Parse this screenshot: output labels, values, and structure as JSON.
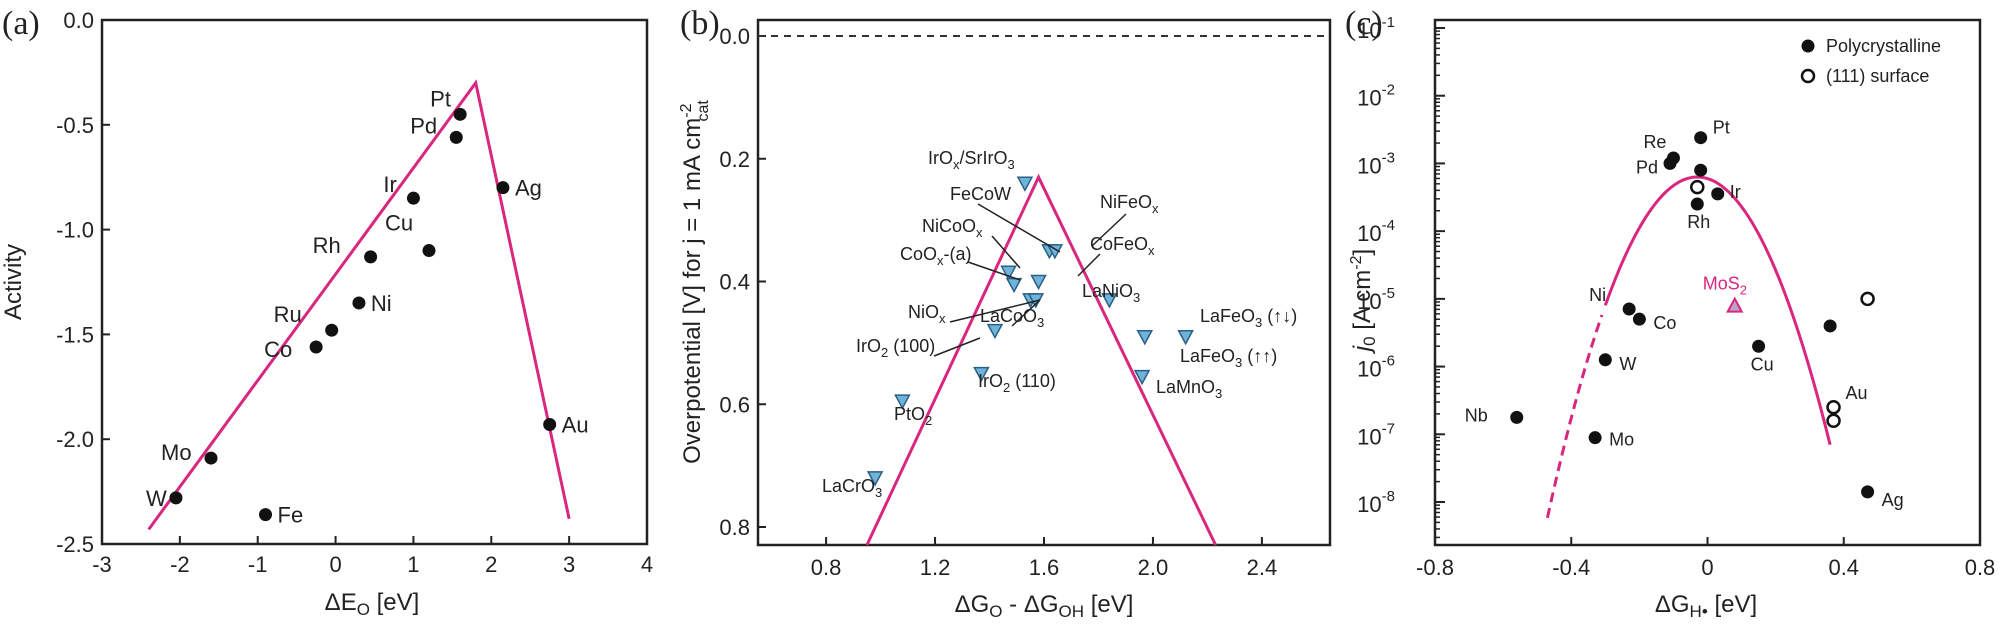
{
  "colors": {
    "trend": "#d9267e",
    "marker": "#111111",
    "triangle": "#6fb3d9",
    "triangle_edge": "#2a5f86",
    "mos2": "#d9267e"
  },
  "chart_data": [
    {
      "type": "scatter",
      "panel": "(a)",
      "xlabel": "ΔE",
      "xlabel_sub": "O",
      "xlabel_unit": " [eV]",
      "ylabel": "Activity",
      "xlim": [
        -3,
        4
      ],
      "ylim": [
        -2.5,
        0.0
      ],
      "xticks": [
        "-3",
        "-2",
        "-1",
        "0",
        "1",
        "2",
        "3",
        "4"
      ],
      "yticks": [
        "-2.5",
        "-2.0",
        "-1.5",
        "-1.0",
        "-0.5",
        "0.0"
      ],
      "points": [
        {
          "label": "Pt",
          "x": 1.6,
          "y": -0.45
        },
        {
          "label": "Pd",
          "x": 1.55,
          "y": -0.56
        },
        {
          "label": "Ir",
          "x": 1.0,
          "y": -0.85
        },
        {
          "label": "Ag",
          "x": 2.15,
          "y": -0.8
        },
        {
          "label": "Cu",
          "x": 1.2,
          "y": -1.1
        },
        {
          "label": "Rh",
          "x": 0.45,
          "y": -1.13
        },
        {
          "label": "Ni",
          "x": 0.3,
          "y": -1.35
        },
        {
          "label": "Ru",
          "x": -0.05,
          "y": -1.48
        },
        {
          "label": "Co",
          "x": -0.25,
          "y": -1.56
        },
        {
          "label": "Au",
          "x": 2.75,
          "y": -1.93
        },
        {
          "label": "Mo",
          "x": -1.6,
          "y": -2.09
        },
        {
          "label": "W",
          "x": -2.05,
          "y": -2.28
        },
        {
          "label": "Fe",
          "x": -0.9,
          "y": -2.36
        }
      ],
      "trend_line": [
        [
          -2.4,
          -2.43
        ],
        [
          1.8,
          -0.3
        ],
        [
          3.0,
          -2.38
        ]
      ]
    },
    {
      "type": "scatter",
      "panel": "(b)",
      "xlabel": "ΔG",
      "xlabel_sub1": "O",
      "xlabel_mid": " - ΔG",
      "xlabel_sub2": "OH",
      "xlabel_unit": " [eV]",
      "ylabel": "Overpotential [V] for j = 1 mA cm",
      "ylabel_sup": "-2",
      "ylabel_sub": "cat",
      "xlim": [
        0.55,
        2.65
      ],
      "ylim": [
        0.0,
        0.86
      ],
      "yinverted": true,
      "xticks": [
        "0.8",
        "1.2",
        "1.6",
        "2.0",
        "2.4"
      ],
      "yticks": [
        "0.0",
        "0.2",
        "0.4",
        "0.6",
        "0.8"
      ],
      "reference_line": 0.0,
      "points": [
        {
          "label": "IrOx/SrIrO3",
          "x": 1.53,
          "y": 0.24
        },
        {
          "label": "FeCoW",
          "x": 1.62,
          "y": 0.35
        },
        {
          "label": "NiFeOx",
          "x": 1.64,
          "y": 0.35
        },
        {
          "label": "NiCoOx",
          "x": 1.47,
          "y": 0.385
        },
        {
          "label": "CoOx-(a)",
          "x": 1.49,
          "y": 0.405
        },
        {
          "label": "CoFeOx",
          "x": 1.58,
          "y": 0.4
        },
        {
          "label": "LaNiO3",
          "x": 1.84,
          "y": 0.43
        },
        {
          "label": "NiOx",
          "x": 1.55,
          "y": 0.43
        },
        {
          "label": "LaCoO3",
          "x": 1.57,
          "y": 0.43
        },
        {
          "label": "LaFeO3 (↑↓)",
          "x": 2.12,
          "y": 0.49
        },
        {
          "label": "LaFeO3 (↑↑)",
          "x": 1.97,
          "y": 0.49
        },
        {
          "label": "IrO2 (100)",
          "x": 1.42,
          "y": 0.48
        },
        {
          "label": "IrO2 (110)",
          "x": 1.37,
          "y": 0.55
        },
        {
          "label": "LaMnO3",
          "x": 1.96,
          "y": 0.555
        },
        {
          "label": "PtO2",
          "x": 1.08,
          "y": 0.595
        },
        {
          "label": "LaCrO3",
          "x": 0.98,
          "y": 0.72
        }
      ],
      "trend_line": [
        [
          0.95,
          0.87
        ],
        [
          1.58,
          0.23
        ],
        [
          2.23,
          0.87
        ]
      ]
    },
    {
      "type": "scatter",
      "panel": "(c)",
      "xlabel": "ΔG",
      "xlabel_sub": "H•",
      "xlabel_unit": " [eV]",
      "ylabel": "j",
      "ylabel_sub": "0",
      "ylabel_unit": " [A cm",
      "ylabel_sup": "-2",
      "ylabel_end": "]",
      "xlim": [
        -0.8,
        0.8
      ],
      "ylog": true,
      "ylim_exp": [
        -9,
        -1
      ],
      "xticks": [
        "-0.8",
        "-0.4",
        "0",
        "0.4",
        "0.8"
      ],
      "ytick_exponents": [
        "-1",
        "-2",
        "-3",
        "-4",
        "-5",
        "-6",
        "-7",
        "-8"
      ],
      "legend_position": "top-right",
      "legend": [
        {
          "label": "Polycrystalline",
          "marker": "filled-circle"
        },
        {
          "label": "(111) surface",
          "marker": "open-circle"
        }
      ],
      "points": [
        {
          "label": "Re",
          "x": -0.1,
          "log_y": -2.92,
          "series": "Polycrystalline"
        },
        {
          "label": "Pd",
          "x": -0.11,
          "log_y": -3.0,
          "series": "Polycrystalline"
        },
        {
          "label": "Pt",
          "x": -0.02,
          "log_y": -2.62,
          "series": "Polycrystalline"
        },
        {
          "label": "",
          "x": -0.02,
          "log_y": -3.1,
          "series": "Polycrystalline"
        },
        {
          "label": "",
          "x": -0.03,
          "log_y": -3.35,
          "series": "(111) surface"
        },
        {
          "label": "Rh",
          "x": -0.03,
          "log_y": -3.6,
          "series": "Polycrystalline"
        },
        {
          "label": "Ir",
          "x": 0.03,
          "log_y": -3.45,
          "series": "Polycrystalline"
        },
        {
          "label": "Ni",
          "x": -0.23,
          "log_y": -5.15,
          "series": "Polycrystalline"
        },
        {
          "label": "Co",
          "x": -0.2,
          "log_y": -5.3,
          "series": "Polycrystalline"
        },
        {
          "label": "W",
          "x": -0.3,
          "log_y": -5.9,
          "series": "Polycrystalline"
        },
        {
          "label": "Cu",
          "x": 0.15,
          "log_y": -5.7,
          "series": "Polycrystalline"
        },
        {
          "label": "Nb",
          "x": -0.56,
          "log_y": -6.75,
          "series": "Polycrystalline"
        },
        {
          "label": "Mo",
          "x": -0.33,
          "log_y": -7.05,
          "series": "Polycrystalline"
        },
        {
          "label": "",
          "x": 0.36,
          "log_y": -5.4,
          "series": "Polycrystalline"
        },
        {
          "label": "",
          "x": 0.47,
          "log_y": -5.0,
          "series": "(111) surface"
        },
        {
          "label": "Au",
          "x": 0.37,
          "log_y": -6.6,
          "series": "(111) surface"
        },
        {
          "label": "",
          "x": 0.37,
          "log_y": -6.8,
          "series": "(111) surface"
        },
        {
          "label": "Ag",
          "x": 0.47,
          "log_y": -7.85,
          "series": "Polycrystalline"
        }
      ],
      "highlight_point": {
        "label": "MoS",
        "label_sub": "2",
        "x": 0.08,
        "log_y": -5.1
      },
      "volcano_peak": {
        "x": -0.03,
        "log_y": -3.2
      }
    }
  ]
}
